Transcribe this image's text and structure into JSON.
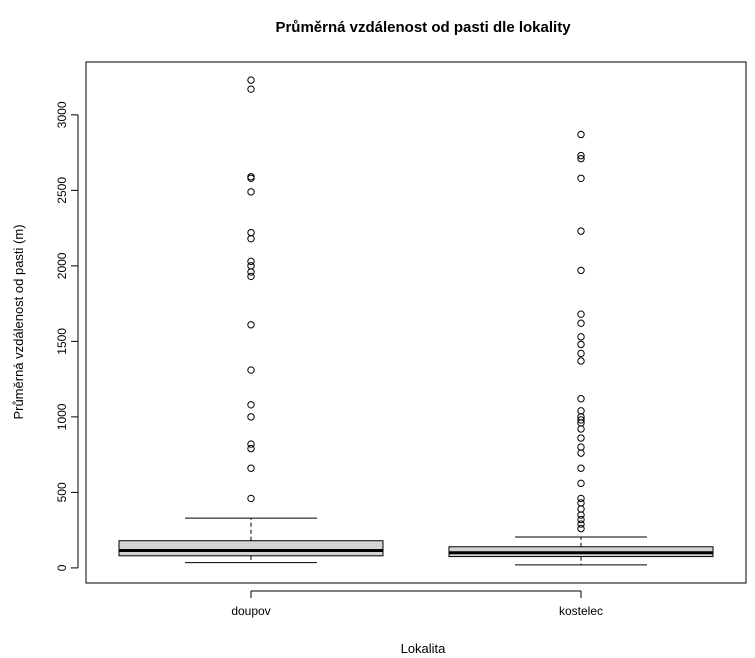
{
  "chart_data": {
    "type": "boxplot",
    "title": "Průměrná vzdálenost od pasti dle lokality",
    "xlabel": "Lokalita",
    "ylabel": "Průměrná vzdálenost od pasti (m)",
    "yticks": [
      0,
      500,
      1000,
      1500,
      2000,
      2500,
      3000
    ],
    "ylim": [
      -100,
      3350
    ],
    "grid": false,
    "box_fill": "#d3d3d3",
    "groups": [
      {
        "category": "doupov",
        "whisker_low": 35,
        "q1": 80,
        "median": 115,
        "q3": 180,
        "whisker_high": 330,
        "outliers": [
          460,
          660,
          790,
          820,
          1000,
          1080,
          1310,
          1610,
          1930,
          1960,
          2000,
          2030,
          2180,
          2220,
          2490,
          2580,
          2590,
          3170,
          3230
        ]
      },
      {
        "category": "kostelec",
        "whisker_low": 20,
        "q1": 75,
        "median": 100,
        "q3": 140,
        "whisker_high": 205,
        "outliers": [
          260,
          290,
          320,
          350,
          390,
          430,
          460,
          560,
          660,
          760,
          800,
          860,
          920,
          960,
          980,
          1000,
          1040,
          1120,
          1370,
          1420,
          1480,
          1530,
          1620,
          1680,
          1970,
          2230,
          2580,
          2710,
          2730,
          2870
        ]
      }
    ]
  }
}
